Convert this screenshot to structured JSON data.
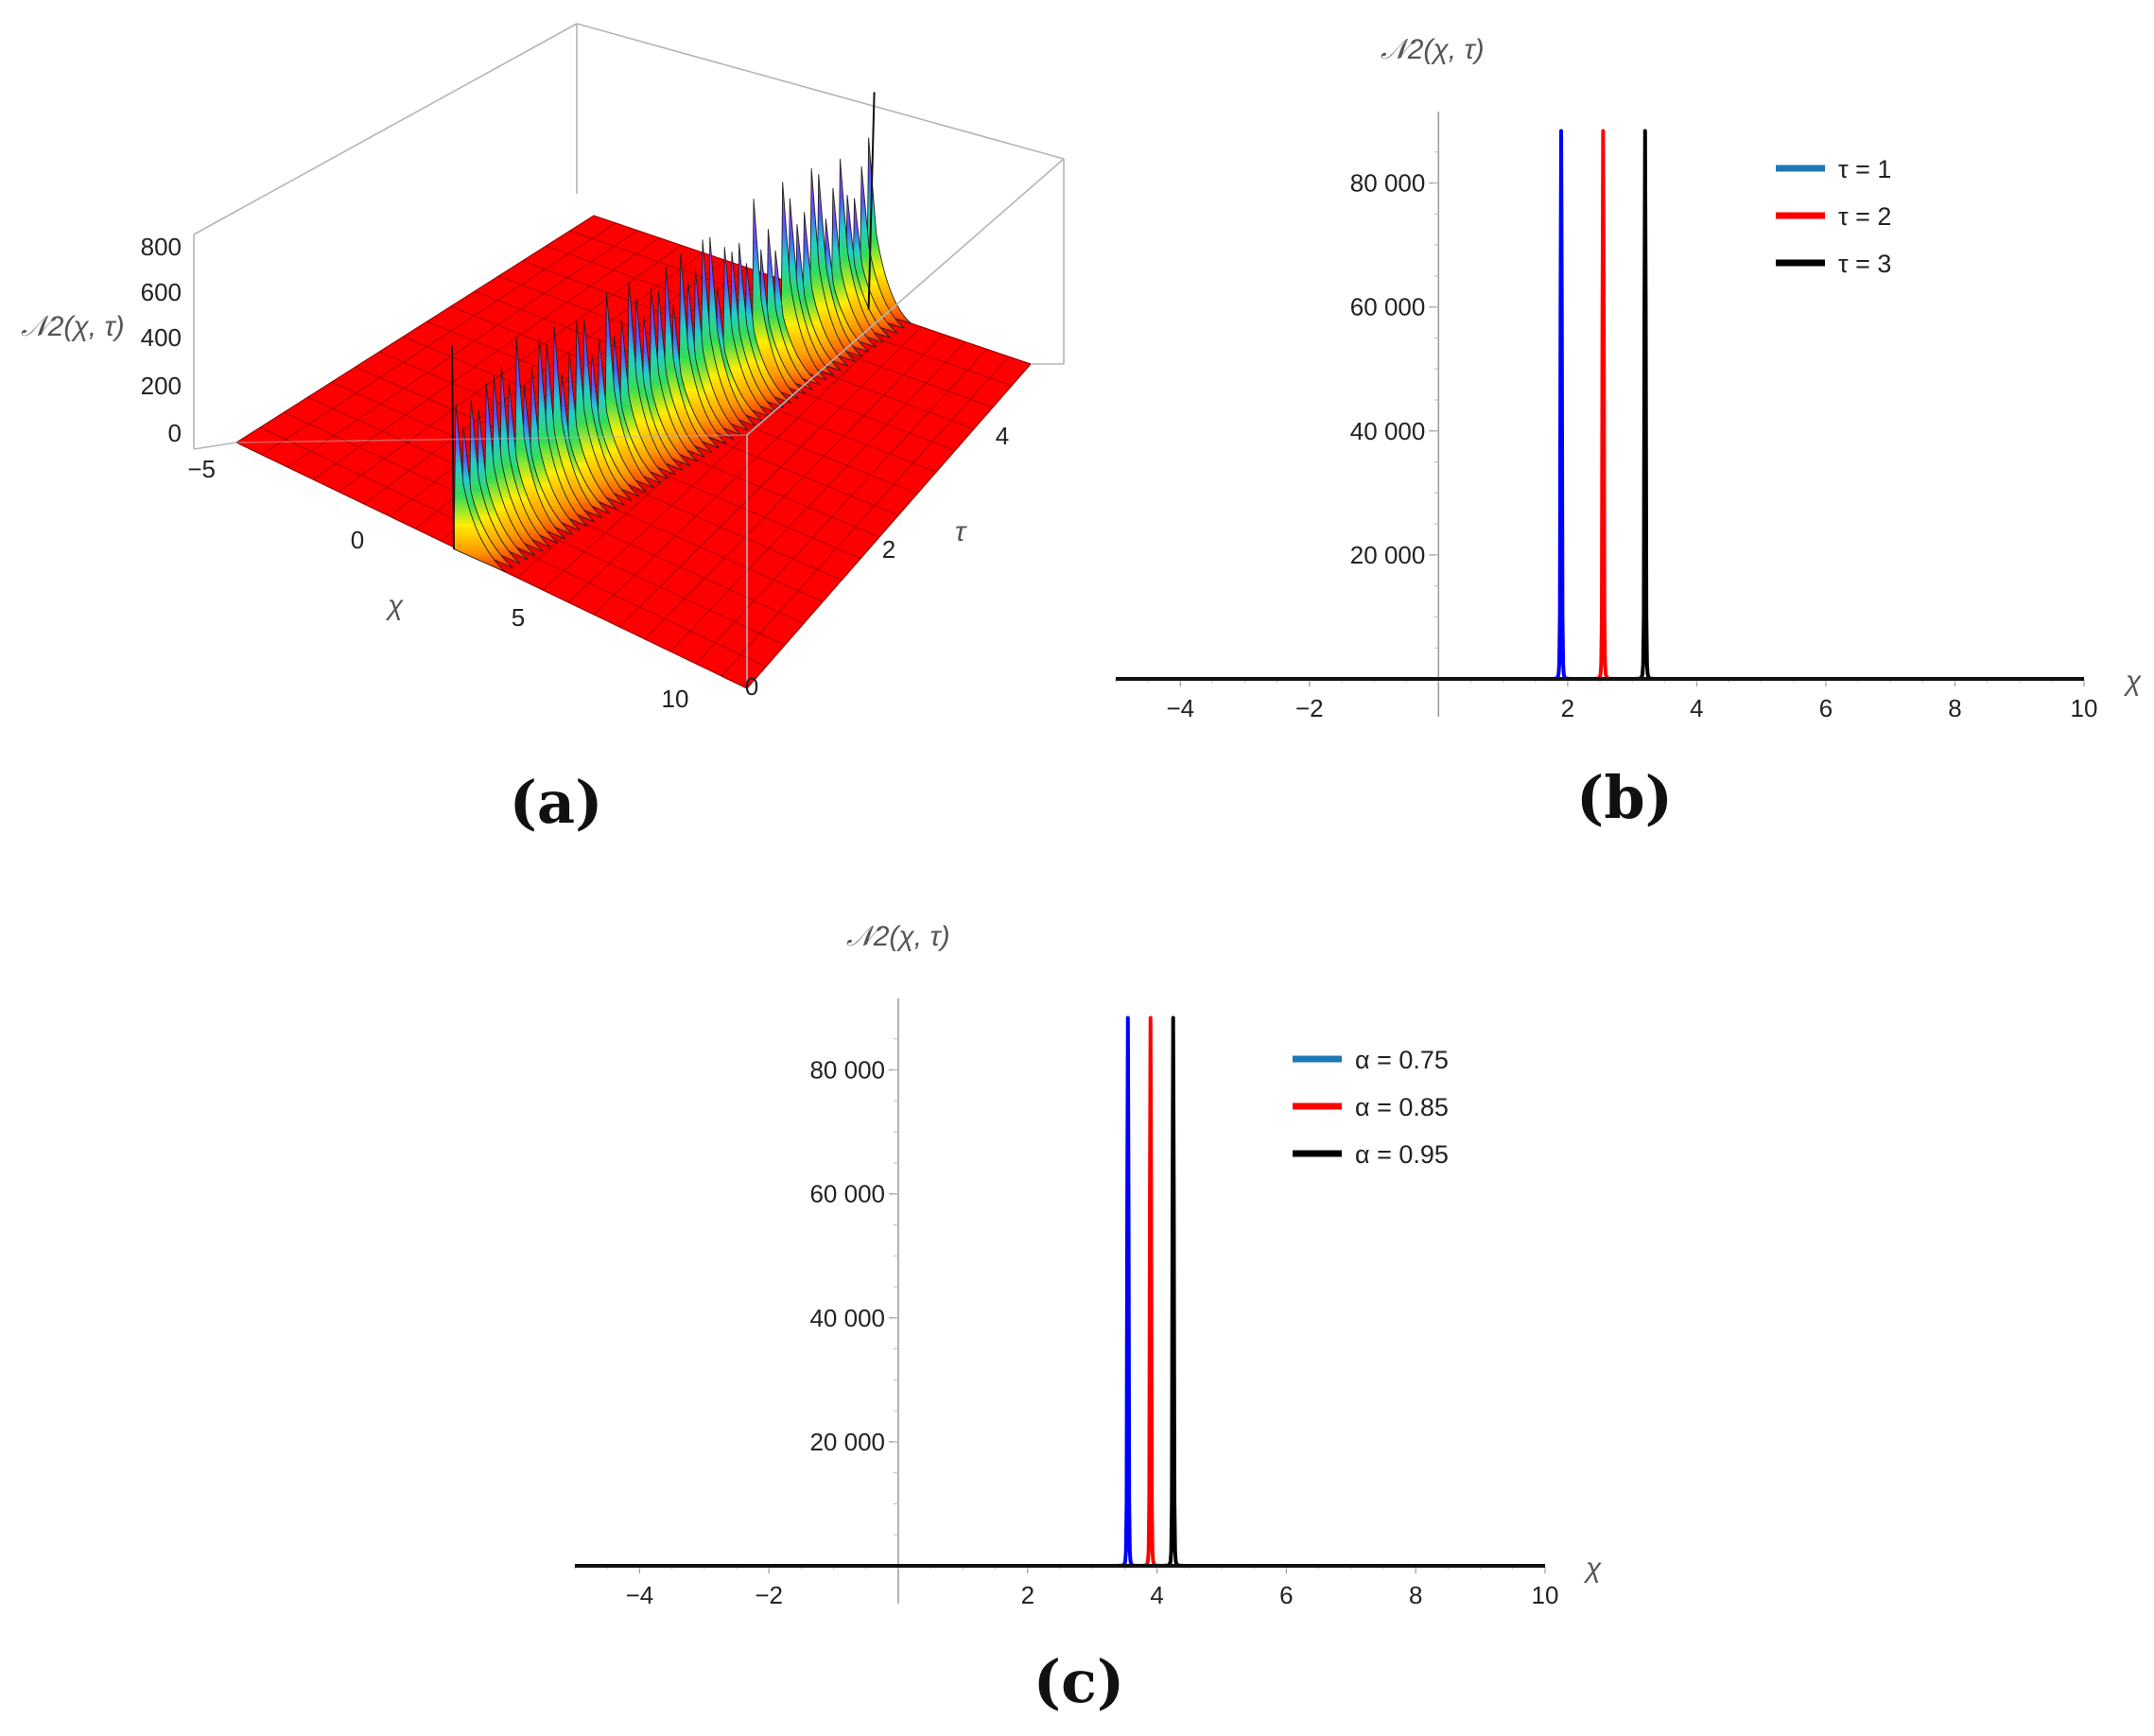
{
  "figure": {
    "panels": [
      {
        "id": "a",
        "label": "(a)"
      },
      {
        "id": "b",
        "label": "(b)"
      },
      {
        "id": "c",
        "label": "(c)"
      }
    ]
  },
  "chart_data": [
    {
      "panel": "a",
      "type": "surface3d",
      "zlabel": "𝒩2(χ, τ)",
      "xlabel": "χ",
      "ylabel": "τ",
      "x_ticks": [
        "−5",
        "0",
        "5",
        "10"
      ],
      "y_ticks": [
        "0",
        "2",
        "4"
      ],
      "z_ticks": [
        "800",
        "600",
        "400",
        "200",
        "0"
      ],
      "x_range": [
        -5,
        10
      ],
      "y_range": [
        0,
        5
      ],
      "z_range": [
        0,
        800
      ],
      "surface_color": "#ff0000",
      "description_ridge": "sharp spikes along χ ≈ 1.5 + 0.6τ"
    },
    {
      "panel": "b",
      "type": "line",
      "xlabel": "χ",
      "ylabel": "𝒩2(χ, τ)",
      "xlim": [
        -5,
        10
      ],
      "ylim": [
        0,
        90000
      ],
      "x_ticks": [
        -4,
        -2,
        2,
        4,
        6,
        8,
        10
      ],
      "x_tick_labels": [
        "−4",
        "−2",
        "2",
        "4",
        "6",
        "8",
        "10"
      ],
      "y_ticks": [
        20000,
        40000,
        60000,
        80000
      ],
      "y_tick_labels": [
        "20 000",
        "40 000",
        "60 000",
        "80 000"
      ],
      "legend": [
        {
          "label": "τ = 1",
          "color": "#1f77b4"
        },
        {
          "label": "τ = 2",
          "color": "#ff0000"
        },
        {
          "label": "τ = 3",
          "color": "#000000"
        }
      ],
      "series": [
        {
          "name": "τ = 1",
          "color": "#0000ff",
          "peak_x": 1.9,
          "peak_y": 88000
        },
        {
          "name": "τ = 2",
          "color": "#ff0000",
          "peak_x": 2.55,
          "peak_y": 88000
        },
        {
          "name": "τ = 3",
          "color": "#000000",
          "peak_x": 3.2,
          "peak_y": 88000
        }
      ]
    },
    {
      "panel": "c",
      "type": "line",
      "xlabel": "χ",
      "ylabel": "𝒩2(χ, τ)",
      "xlim": [
        -5,
        10
      ],
      "ylim": [
        0,
        90000
      ],
      "x_ticks": [
        -4,
        -2,
        2,
        4,
        6,
        8,
        10
      ],
      "x_tick_labels": [
        "−4",
        "−2",
        "2",
        "4",
        "6",
        "8",
        "10"
      ],
      "y_ticks": [
        20000,
        40000,
        60000,
        80000
      ],
      "y_tick_labels": [
        "20 000",
        "40 000",
        "60 000",
        "80 000"
      ],
      "legend": [
        {
          "label": "α = 0.75",
          "color": "#1f77b4"
        },
        {
          "label": "α = 0.85",
          "color": "#ff0000"
        },
        {
          "label": "α = 0.95",
          "color": "#000000"
        }
      ],
      "series": [
        {
          "name": "α = 0.75",
          "color": "#0000ff",
          "peak_x": 3.55,
          "peak_y": 88000
        },
        {
          "name": "α = 0.85",
          "color": "#ff0000",
          "peak_x": 3.9,
          "peak_y": 88000
        },
        {
          "name": "α = 0.95",
          "color": "#000000",
          "peak_x": 4.25,
          "peak_y": 88000
        }
      ]
    }
  ]
}
